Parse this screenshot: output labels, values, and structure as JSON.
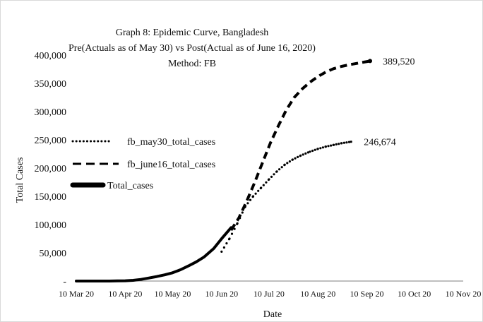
{
  "chart_data": {
    "type": "line",
    "title_lines": [
      "Graph 8: Epidemic Curve, Bangladesh",
      "Pre(Actuals as of May 30) vs Post(Actual as of June 16, 2020)",
      "Method: FB"
    ],
    "xlabel": "Date",
    "ylabel": "Total Cases",
    "x_axis_type": "date",
    "xlim": [
      "2020-03-10",
      "2020-11-10"
    ],
    "x_ticks": [
      "2020-03-10",
      "2020-04-10",
      "2020-05-10",
      "2020-06-10",
      "2020-07-10",
      "2020-08-10",
      "2020-09-10",
      "2020-10-10",
      "2020-11-10"
    ],
    "x_tick_labels": [
      "10 Mar 20",
      "10 Apr 20",
      "10 May 20",
      "10 Jun 20",
      "10 Jul 20",
      "10 Aug 20",
      "10 Sep 20",
      "10 Oct 20",
      "10 Nov 20"
    ],
    "ylim": [
      0,
      400000
    ],
    "y_ticks": [
      0,
      50000,
      100000,
      150000,
      200000,
      250000,
      300000,
      350000,
      400000
    ],
    "y_tick_labels": [
      "-",
      "50,000",
      "100,000",
      "150,000",
      "200,000",
      "250,000",
      "300,000",
      "350,000",
      "400,000"
    ],
    "grid": false,
    "legend_position": "left",
    "series": [
      {
        "name": "fb_may30_total_cases",
        "style": "dotted",
        "color": "#000000",
        "points": [
          [
            "2020-06-10",
            52000
          ],
          [
            "2020-06-15",
            75000
          ],
          [
            "2020-06-20",
            102000
          ],
          [
            "2020-06-25",
            132000
          ],
          [
            "2020-06-30",
            150000
          ],
          [
            "2020-07-05",
            165000
          ],
          [
            "2020-07-10",
            180000
          ],
          [
            "2020-07-15",
            194000
          ],
          [
            "2020-07-20",
            206000
          ],
          [
            "2020-07-25",
            215000
          ],
          [
            "2020-07-30",
            222000
          ],
          [
            "2020-08-05",
            229000
          ],
          [
            "2020-08-10",
            234000
          ],
          [
            "2020-08-15",
            238000
          ],
          [
            "2020-08-20",
            241000
          ],
          [
            "2020-08-25",
            244000
          ],
          [
            "2020-08-31",
            246674
          ]
        ],
        "end_label": "246,674"
      },
      {
        "name": "fb_june16_total_cases",
        "style": "dashed",
        "color": "#000000",
        "points": [
          [
            "2020-06-16",
            90000
          ],
          [
            "2020-06-21",
            112000
          ],
          [
            "2020-06-26",
            142000
          ],
          [
            "2020-07-01",
            175000
          ],
          [
            "2020-07-06",
            210000
          ],
          [
            "2020-07-11",
            245000
          ],
          [
            "2020-07-16",
            275000
          ],
          [
            "2020-07-21",
            303000
          ],
          [
            "2020-07-26",
            325000
          ],
          [
            "2020-07-31",
            340000
          ],
          [
            "2020-08-05",
            352000
          ],
          [
            "2020-08-10",
            362000
          ],
          [
            "2020-08-15",
            370000
          ],
          [
            "2020-08-20",
            376000
          ],
          [
            "2020-08-25",
            380000
          ],
          [
            "2020-08-30",
            383000
          ],
          [
            "2020-09-05",
            386000
          ],
          [
            "2020-09-12",
            389520
          ]
        ],
        "end_label": "389,520"
      },
      {
        "name": "Total_cases",
        "style": "solid-thick",
        "color": "#000000",
        "points": [
          [
            "2020-03-10",
            0
          ],
          [
            "2020-03-20",
            50
          ],
          [
            "2020-03-31",
            60
          ],
          [
            "2020-04-05",
            200
          ],
          [
            "2020-04-10",
            500
          ],
          [
            "2020-04-15",
            1200
          ],
          [
            "2020-04-20",
            2900
          ],
          [
            "2020-04-25",
            5400
          ],
          [
            "2020-04-30",
            8000
          ],
          [
            "2020-05-05",
            11000
          ],
          [
            "2020-05-10",
            14600
          ],
          [
            "2020-05-15",
            20000
          ],
          [
            "2020-05-20",
            26700
          ],
          [
            "2020-05-25",
            34000
          ],
          [
            "2020-05-30",
            42800
          ],
          [
            "2020-06-05",
            57500
          ],
          [
            "2020-06-10",
            74900
          ],
          [
            "2020-06-16",
            94500
          ]
        ]
      }
    ]
  }
}
